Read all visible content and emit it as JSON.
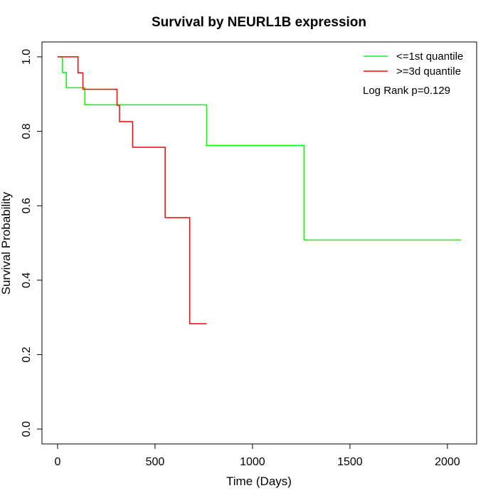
{
  "chart_data": {
    "type": "line",
    "title": "Survival by NEURL1B expression",
    "xlabel": "Time (Days)",
    "ylabel": "Survival Probability",
    "xlim": [
      -80,
      2150
    ],
    "ylim": [
      -0.04,
      1.04
    ],
    "x_ticks": [
      0,
      500,
      1000,
      1500,
      2000
    ],
    "x_tick_labels": [
      "0",
      "500",
      "1000",
      "1500",
      "2000"
    ],
    "y_ticks": [
      0.0,
      0.2,
      0.4,
      0.6,
      0.8,
      1.0
    ],
    "y_tick_labels": [
      "0.0",
      "0.2",
      "0.4",
      "0.6",
      "0.8",
      "1.0"
    ],
    "grid": false,
    "legend_position": "top-right",
    "annotation": "Log Rank p=0.129",
    "series": [
      {
        "name": "<=1st quantile",
        "color": "#00ff00",
        "step": true,
        "x": [
          0,
          25,
          45,
          140,
          765,
          1265,
          2070
        ],
        "y": [
          1.0,
          0.958,
          0.917,
          0.871,
          0.762,
          0.508,
          0.508
        ]
      },
      {
        "name": ">=3d quantile",
        "color": "#ff0000",
        "step": true,
        "x": [
          0,
          105,
          130,
          305,
          318,
          385,
          552,
          678,
          765
        ],
        "y": [
          1.0,
          0.957,
          0.913,
          0.87,
          0.826,
          0.757,
          0.568,
          0.283,
          0.283
        ]
      }
    ]
  }
}
